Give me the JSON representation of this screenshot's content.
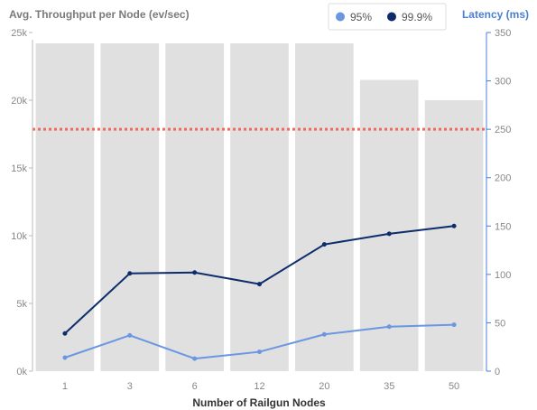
{
  "chart_data": {
    "type": "bar",
    "xlabel": "Number of Railgun Nodes",
    "categories": [
      "1",
      "3",
      "6",
      "12",
      "20",
      "35",
      "50"
    ],
    "bars": {
      "name": "Avg. Throughput per Node (ev/sec)",
      "values": [
        25000,
        25000,
        25000,
        25000,
        25000,
        21500,
        20000
      ],
      "color": "#e0e0e0"
    },
    "left_axis": {
      "label": "Avg. Throughput per Node (ev/sec)",
      "ylim": [
        0,
        25000
      ],
      "ticks": [
        0,
        5000,
        10000,
        15000,
        20000,
        25000
      ],
      "tick_labels": [
        "0k",
        "5k",
        "10k",
        "15k",
        "20k",
        "25k"
      ]
    },
    "right_axis": {
      "label": "Latency (ms)",
      "ylim": [
        0,
        350
      ],
      "ticks": [
        0,
        50,
        100,
        150,
        200,
        250,
        300,
        350
      ],
      "tick_labels": [
        "0",
        "50",
        "100",
        "150",
        "200",
        "250",
        "300",
        "350"
      ],
      "color": "#4a7fd4"
    },
    "series": [
      {
        "name": "95%",
        "values": [
          14,
          37,
          13,
          20,
          38,
          46,
          48
        ],
        "color": "#6a96e2"
      },
      {
        "name": "99.9%",
        "values": [
          39,
          101,
          102,
          90,
          131,
          142,
          150
        ],
        "color": "#0d2c6b"
      }
    ],
    "threshold": {
      "value": 250,
      "axis": "right",
      "color": "#f06a5e"
    },
    "legend": {
      "position": "top-right"
    },
    "grid": false
  }
}
